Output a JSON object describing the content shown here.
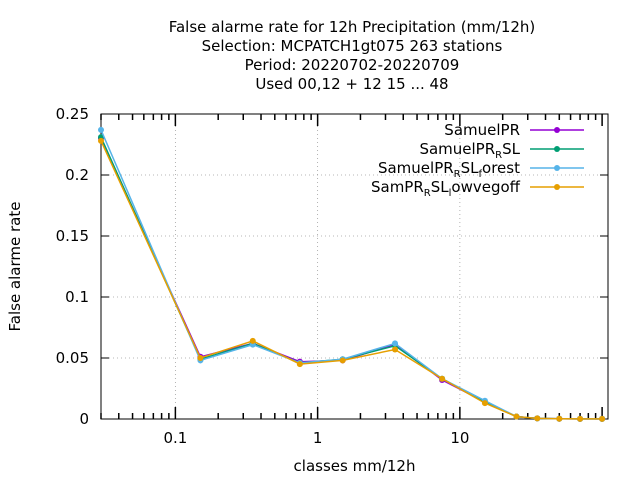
{
  "chart_data": {
    "type": "line",
    "title_lines": [
      "False alarme rate  for 12h Precipitation (mm/12h)",
      "Selection: MCPATCH1gt075    263 stations",
      "Period: 20220702-20220709",
      "Used  00,12  + 12 15 ... 48"
    ],
    "xlabel": "classes mm/12h",
    "ylabel": "False alarme rate",
    "x_scale": "log",
    "xlim": [
      0.03,
      110
    ],
    "ylim": [
      0,
      0.25
    ],
    "y_ticks": [
      {
        "value": 0,
        "label": "0"
      },
      {
        "value": 0.05,
        "label": "0.05"
      },
      {
        "value": 0.1,
        "label": "0.1"
      },
      {
        "value": 0.15,
        "label": "0.15"
      },
      {
        "value": 0.2,
        "label": "0.2"
      },
      {
        "value": 0.25,
        "label": "0.25"
      }
    ],
    "x_ticks": [
      {
        "value": 0.1,
        "label": "0.1"
      },
      {
        "value": 1,
        "label": "1"
      },
      {
        "value": 10,
        "label": "10"
      }
    ],
    "grid": true,
    "legend_position": "top-right",
    "x": [
      0.03,
      0.15,
      0.35,
      0.75,
      1.5,
      3.5,
      7.5,
      15,
      25,
      35,
      50,
      70,
      100
    ],
    "series": [
      {
        "name": "SamuelPR",
        "name_main": "SamuelPR",
        "name_sub": "",
        "name_tail": "",
        "color": "#9400d3",
        "values": [
          0.23,
          0.051,
          0.062,
          0.047,
          0.048,
          0.061,
          0.032,
          0.014,
          0.002,
          0.0005,
          0.0002,
          0.0001,
          0.0001
        ]
      },
      {
        "name": "SamuelPR_RSL",
        "name_main": "SamuelPR",
        "name_sub": "R",
        "name_tail": "SL",
        "color": "#009e73",
        "values": [
          0.231,
          0.049,
          0.062,
          0.046,
          0.049,
          0.06,
          0.033,
          0.014,
          0.002,
          0.0005,
          0.0002,
          0.0001,
          0.0001
        ]
      },
      {
        "name": "SamuelPR_RSL_forest",
        "name_main": "SamuelPR",
        "name_sub": "R",
        "name_tail": "SL",
        "name_sub2": "f",
        "name_tail2": "orest",
        "color": "#56b4e9",
        "values": [
          0.237,
          0.048,
          0.061,
          0.046,
          0.049,
          0.062,
          0.033,
          0.015,
          0.002,
          0.0005,
          0.0002,
          0.0001,
          0.0001
        ]
      },
      {
        "name": "SamPR_RSL_lowvegoff",
        "name_main": "SamPR",
        "name_sub": "R",
        "name_tail": "SL",
        "name_sub2": "l",
        "name_tail2": "owvegoff",
        "color": "#e69f00",
        "values": [
          0.228,
          0.05,
          0.064,
          0.045,
          0.048,
          0.057,
          0.033,
          0.013,
          0.002,
          0.0005,
          0.0002,
          0.0001,
          0.0001
        ]
      }
    ]
  }
}
